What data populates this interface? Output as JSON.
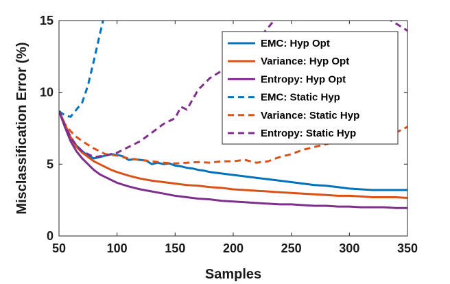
{
  "chart_data": {
    "type": "line",
    "title": "",
    "xlabel": "Samples",
    "ylabel": "Misclassification Error (%)",
    "xlim": [
      50,
      350
    ],
    "ylim": [
      0,
      15
    ],
    "xticks": [
      50,
      100,
      150,
      200,
      250,
      300,
      350
    ],
    "yticks": [
      0,
      5,
      10,
      15
    ],
    "grid": false,
    "legend_position": "top-right",
    "series": [
      {
        "name": "EMC: Hyp Opt",
        "color": "#0072BD",
        "style": "solid",
        "x": [
          50,
          55,
          60,
          65,
          70,
          75,
          80,
          85,
          90,
          95,
          100,
          105,
          110,
          115,
          120,
          125,
          130,
          135,
          140,
          145,
          150,
          155,
          160,
          165,
          170,
          175,
          180,
          185,
          190,
          195,
          200,
          210,
          220,
          230,
          240,
          250,
          260,
          270,
          280,
          290,
          300,
          310,
          320,
          330,
          340,
          350
        ],
        "y": [
          8.7,
          7.8,
          6.8,
          6.3,
          5.9,
          5.6,
          5.4,
          5.5,
          5.6,
          5.7,
          5.65,
          5.55,
          5.3,
          5.35,
          5.3,
          5.25,
          5.0,
          5.1,
          5.0,
          5.05,
          4.9,
          4.85,
          4.75,
          4.7,
          4.6,
          4.55,
          4.45,
          4.4,
          4.35,
          4.3,
          4.25,
          4.15,
          4.05,
          3.95,
          3.85,
          3.75,
          3.65,
          3.55,
          3.5,
          3.4,
          3.3,
          3.25,
          3.2,
          3.2,
          3.2,
          3.2
        ]
      },
      {
        "name": "Variance: Hyp Opt",
        "color": "#D95319",
        "style": "solid",
        "x": [
          50,
          55,
          60,
          65,
          70,
          75,
          80,
          85,
          90,
          95,
          100,
          110,
          120,
          130,
          140,
          150,
          160,
          170,
          180,
          190,
          200,
          210,
          220,
          230,
          240,
          250,
          260,
          270,
          280,
          290,
          300,
          310,
          320,
          330,
          340,
          350
        ],
        "y": [
          8.7,
          7.8,
          6.9,
          6.2,
          5.8,
          5.5,
          5.2,
          5.0,
          4.8,
          4.6,
          4.45,
          4.2,
          4.0,
          3.85,
          3.75,
          3.65,
          3.55,
          3.5,
          3.4,
          3.35,
          3.25,
          3.2,
          3.15,
          3.1,
          3.05,
          3.0,
          2.95,
          2.9,
          2.85,
          2.8,
          2.8,
          2.75,
          2.7,
          2.7,
          2.7,
          2.65
        ]
      },
      {
        "name": "Entropy: Hyp Opt",
        "color": "#7E2F8E",
        "style": "solid",
        "x": [
          50,
          55,
          60,
          65,
          70,
          75,
          80,
          85,
          90,
          95,
          100,
          110,
          120,
          130,
          140,
          150,
          160,
          170,
          180,
          190,
          200,
          210,
          220,
          230,
          240,
          250,
          260,
          270,
          280,
          290,
          300,
          310,
          320,
          330,
          340,
          350
        ],
        "y": [
          8.7,
          7.6,
          6.6,
          5.9,
          5.4,
          5.0,
          4.6,
          4.3,
          4.1,
          3.9,
          3.7,
          3.45,
          3.25,
          3.1,
          2.95,
          2.8,
          2.7,
          2.6,
          2.55,
          2.45,
          2.4,
          2.35,
          2.3,
          2.25,
          2.2,
          2.2,
          2.15,
          2.1,
          2.1,
          2.05,
          2.05,
          2.0,
          2.0,
          2.0,
          1.95,
          1.95
        ]
      },
      {
        "name": "EMC: Static Hyp",
        "color": "#0072BD",
        "style": "dashed",
        "x": [
          50,
          55,
          60,
          65,
          70,
          75,
          80,
          85,
          88
        ],
        "y": [
          8.7,
          8.4,
          8.3,
          8.8,
          9.3,
          10.5,
          12.2,
          14.0,
          15.0
        ]
      },
      {
        "name": "Variance: Static Hyp",
        "color": "#D95319",
        "style": "dashed",
        "x": [
          50,
          55,
          60,
          65,
          70,
          80,
          90,
          100,
          110,
          120,
          130,
          140,
          150,
          160,
          170,
          180,
          190,
          200,
          210,
          220,
          230,
          240,
          250,
          260,
          270,
          280,
          290,
          300,
          310,
          320,
          330,
          340,
          350
        ],
        "y": [
          8.7,
          7.8,
          7.3,
          6.9,
          6.6,
          6.1,
          5.7,
          5.6,
          5.4,
          5.3,
          5.2,
          5.1,
          5.05,
          5.1,
          5.15,
          5.1,
          5.2,
          5.2,
          5.3,
          5.1,
          5.2,
          5.5,
          5.7,
          6.0,
          6.2,
          6.4,
          6.6,
          6.7,
          6.8,
          6.9,
          7.0,
          7.2,
          7.6
        ]
      },
      {
        "name": "Entropy: Static Hyp",
        "color": "#7E2F8E",
        "style": "dashed",
        "x": [
          50,
          55,
          60,
          65,
          70,
          80,
          90,
          100,
          110,
          120,
          130,
          140,
          150,
          155,
          160,
          170,
          180,
          190,
          200,
          210,
          220,
          230,
          235,
          240,
          330,
          340,
          350
        ],
        "y": [
          8.7,
          7.7,
          6.9,
          6.3,
          5.9,
          5.5,
          5.6,
          5.8,
          6.2,
          6.6,
          7.2,
          7.8,
          8.2,
          9.0,
          8.8,
          10.2,
          11.0,
          11.5,
          12.2,
          13.0,
          13.6,
          14.5,
          15.0,
          15.3,
          15.3,
          14.8,
          14.3
        ]
      }
    ]
  }
}
